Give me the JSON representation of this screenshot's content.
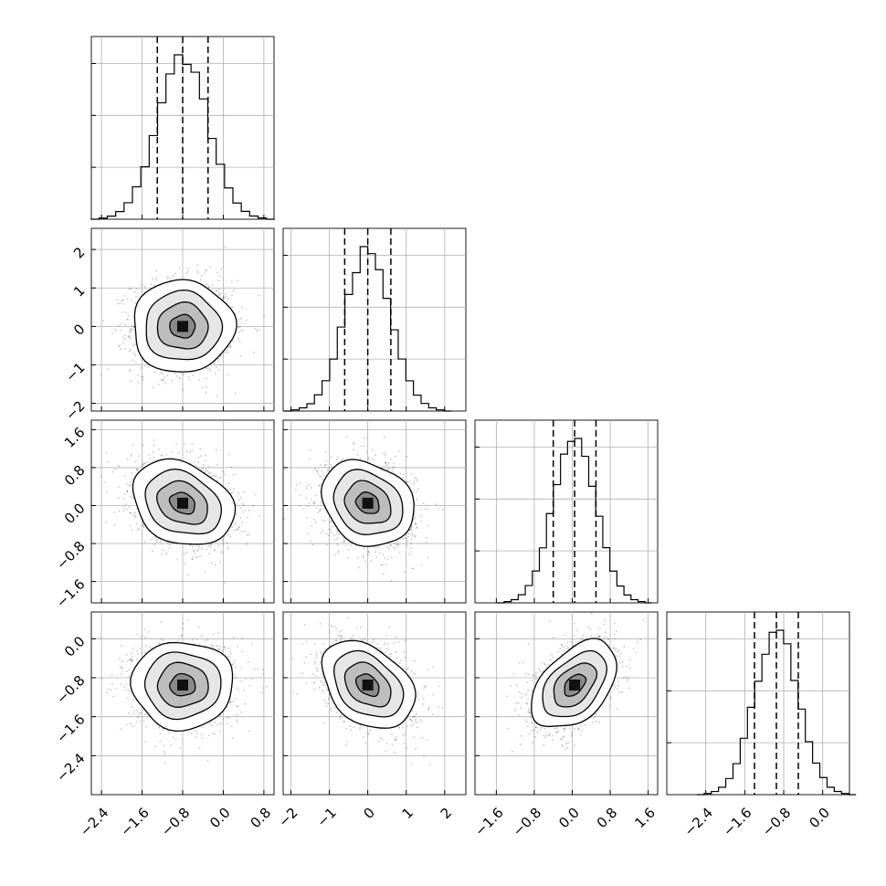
{
  "chart_data": {
    "type": "corner",
    "n_parameters": 4,
    "labels": [
      "",
      "",
      "",
      ""
    ],
    "parameters": [
      {
        "index": 0,
        "mean": -0.8,
        "std": 0.5,
        "quantiles": [
          -1.3,
          -0.8,
          -0.3
        ],
        "axis_range": [
          -2.6,
          1.0
        ],
        "tick_values": [
          -2.4,
          -1.6,
          -0.8,
          0.0,
          0.8
        ],
        "tick_labels": [
          "−2.4",
          "−1.6",
          "−0.8",
          "0.0",
          "0.8"
        ]
      },
      {
        "index": 1,
        "mean": 0.0,
        "std": 0.6,
        "quantiles": [
          -0.6,
          0.0,
          0.6
        ],
        "axis_range": [
          -2.2,
          2.55
        ],
        "tick_values": [
          -2,
          -1,
          0,
          1,
          2
        ],
        "tick_labels": [
          "−2",
          "−1",
          "0",
          "1",
          "2"
        ]
      },
      {
        "index": 2,
        "mean": 0.05,
        "std": 0.45,
        "quantiles": [
          -0.4,
          0.05,
          0.5
        ],
        "axis_range": [
          -2.05,
          1.8
        ],
        "tick_values": [
          -1.6,
          -0.8,
          0.0,
          0.8,
          1.6
        ],
        "tick_labels": [
          "−1.6",
          "−0.8",
          "0.0",
          "0.8",
          "1.6"
        ]
      },
      {
        "index": 3,
        "mean": -0.95,
        "std": 0.45,
        "quantiles": [
          -1.4,
          -0.95,
          -0.5
        ],
        "axis_range": [
          -3.2,
          0.55
        ],
        "tick_values": [
          -2.4,
          -1.6,
          -0.8,
          0.0
        ],
        "tick_labels": [
          "−2.4",
          "−1.6",
          "−0.8",
          "0.0"
        ]
      }
    ],
    "correlations": [
      {
        "pair": [
          0,
          1
        ],
        "rho": 0.0
      },
      {
        "pair": [
          0,
          2
        ],
        "rho": -0.25
      },
      {
        "pair": [
          1,
          2
        ],
        "rho": -0.2
      },
      {
        "pair": [
          0,
          3
        ],
        "rho": 0.0
      },
      {
        "pair": [
          1,
          3
        ],
        "rho": -0.35
      },
      {
        "pair": [
          2,
          3
        ],
        "rho": 0.45
      }
    ],
    "contour_levels_sigma": [
      0.5,
      1.0,
      1.5,
      2.0
    ],
    "hist_bins": 20,
    "grid": true,
    "diagonal_y_tick_labels": false
  }
}
